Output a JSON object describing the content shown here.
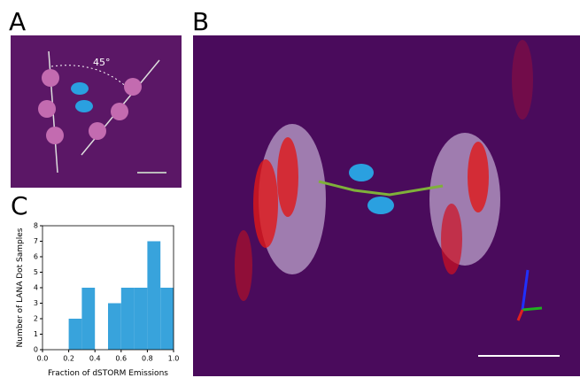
{
  "panels": {
    "a": "A",
    "b": "B",
    "c": "C"
  },
  "annotation": "45°",
  "chart_data": {
    "type": "histogram",
    "xlabel": "Fraction of dSTORM Emissions",
    "ylabel": "Number of LANA Dot Samples",
    "bins": [
      0.2,
      0.3,
      0.4,
      0.5,
      0.6,
      0.7,
      0.8,
      0.9,
      1.0
    ],
    "counts": [
      2,
      4,
      0,
      3,
      4,
      4,
      7,
      4
    ],
    "color": "#38a3dc",
    "xlim": [
      0,
      1
    ],
    "ylim": [
      0,
      8
    ],
    "xticks": [
      {
        "value": 0,
        "label": "0.0"
      },
      {
        "value": 0.2,
        "label": "0.2"
      },
      {
        "value": 0.4,
        "label": "0.4"
      },
      {
        "value": 0.6,
        "label": "0.6"
      },
      {
        "value": 0.8,
        "label": "0.8"
      },
      {
        "value": 1,
        "label": "1.0"
      }
    ],
    "yticks": [
      0,
      1,
      2,
      3,
      4,
      5,
      6,
      7,
      8
    ]
  }
}
